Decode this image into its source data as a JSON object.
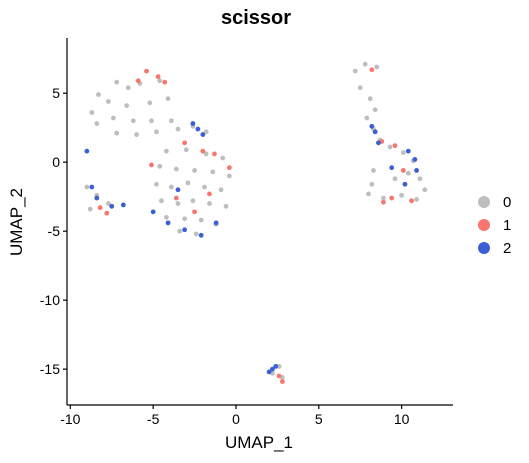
{
  "chart_data": {
    "type": "scatter",
    "title": "scissor",
    "xlabel": "UMAP_1",
    "ylabel": "UMAP_2",
    "xlim": [
      -10.2,
      13.1
    ],
    "ylim": [
      -17.6,
      9.0
    ],
    "x_ticks": [
      -10,
      -5,
      0,
      5,
      10
    ],
    "y_ticks": [
      -15,
      -10,
      -5,
      0,
      5
    ],
    "grid": false,
    "legend_position": "right",
    "legend": [
      {
        "label": "0",
        "color": "#BEBEBE"
      },
      {
        "label": "1",
        "color": "#F8766D"
      },
      {
        "label": "2",
        "color": "#3B5FD4"
      }
    ],
    "series": [
      {
        "name": "0",
        "color": "#BEBEBE",
        "points": [
          [
            -7.2,
            5.8
          ],
          [
            -6.5,
            5.4
          ],
          [
            -5.8,
            5.7
          ],
          [
            -4.6,
            5.9
          ],
          [
            -8.3,
            4.9
          ],
          [
            -7.7,
            4.4
          ],
          [
            -6.6,
            4.1
          ],
          [
            -5.2,
            4.3
          ],
          [
            -4.1,
            4.6
          ],
          [
            -8.7,
            3.6
          ],
          [
            -7.4,
            3.2
          ],
          [
            -6.2,
            3.0
          ],
          [
            -5.1,
            3.0
          ],
          [
            -3.9,
            3.0
          ],
          [
            -8.4,
            2.8
          ],
          [
            -7.2,
            2.1
          ],
          [
            -6.0,
            2.0
          ],
          [
            -4.8,
            2.2
          ],
          [
            -3.5,
            2.4
          ],
          [
            -2.6,
            2.6
          ],
          [
            -1.8,
            2.2
          ],
          [
            -9.0,
            -1.8
          ],
          [
            -8.4,
            -2.4
          ],
          [
            -7.7,
            -3.0
          ],
          [
            -8.8,
            -3.4
          ],
          [
            -4.2,
            0.8
          ],
          [
            -3.0,
            0.9
          ],
          [
            -1.8,
            0.6
          ],
          [
            -0.8,
            0.3
          ],
          [
            -4.6,
            -0.3
          ],
          [
            -3.6,
            -0.5
          ],
          [
            -2.5,
            -0.6
          ],
          [
            -1.4,
            -0.7
          ],
          [
            -0.4,
            -1.0
          ],
          [
            -4.8,
            -1.6
          ],
          [
            -3.9,
            -1.8
          ],
          [
            -2.9,
            -1.5
          ],
          [
            -1.9,
            -1.8
          ],
          [
            -0.9,
            -2.0
          ],
          [
            -4.5,
            -2.8
          ],
          [
            -3.5,
            -3.0
          ],
          [
            -2.6,
            -2.8
          ],
          [
            -1.6,
            -3.0
          ],
          [
            -0.6,
            -3.2
          ],
          [
            -4.2,
            -4.0
          ],
          [
            -3.1,
            -4.1
          ],
          [
            -2.1,
            -4.2
          ],
          [
            -1.2,
            -4.5
          ],
          [
            -3.4,
            -5.0
          ],
          [
            -2.4,
            -5.2
          ],
          [
            7.2,
            6.6
          ],
          [
            7.8,
            7.1
          ],
          [
            8.5,
            6.9
          ],
          [
            7.5,
            5.4
          ],
          [
            8.1,
            4.6
          ],
          [
            8.4,
            3.8
          ],
          [
            7.9,
            3.2
          ],
          [
            8.3,
            2.4
          ],
          [
            8.7,
            1.6
          ],
          [
            9.3,
            1.1
          ],
          [
            10.1,
            0.7
          ],
          [
            10.7,
            0.1
          ],
          [
            10.4,
            -0.8
          ],
          [
            9.6,
            -1.2
          ],
          [
            8.3,
            -0.6
          ],
          [
            8.2,
            -1.6
          ],
          [
            8.0,
            -2.3
          ],
          [
            8.9,
            -2.6
          ],
          [
            10.0,
            -2.4
          ],
          [
            10.9,
            -2.7
          ],
          [
            11.4,
            -2.0
          ],
          [
            11.1,
            -1.2
          ],
          [
            2.2,
            -15.3
          ],
          [
            2.6,
            -14.8
          ],
          [
            2.8,
            -15.6
          ]
        ]
      },
      {
        "name": "1",
        "color": "#F8766D",
        "points": [
          [
            -5.4,
            6.6
          ],
          [
            -4.7,
            6.2
          ],
          [
            -4.3,
            5.8
          ],
          [
            -5.9,
            5.9
          ],
          [
            -3.1,
            1.4
          ],
          [
            -2.0,
            0.8
          ],
          [
            -1.3,
            0.6
          ],
          [
            -0.4,
            -0.4
          ],
          [
            -1.6,
            -2.3
          ],
          [
            -3.6,
            -2.6
          ],
          [
            -2.5,
            -3.6
          ],
          [
            -5.1,
            -0.2
          ],
          [
            -8.2,
            -3.3
          ],
          [
            -7.8,
            -3.7
          ],
          [
            8.2,
            6.7
          ],
          [
            8.8,
            1.5
          ],
          [
            9.6,
            1.2
          ],
          [
            10.1,
            -0.6
          ],
          [
            9.4,
            -2.6
          ],
          [
            10.6,
            -2.8
          ],
          [
            8.9,
            -2.9
          ],
          [
            2.6,
            -15.5
          ],
          [
            2.8,
            -15.9
          ]
        ]
      },
      {
        "name": "2",
        "color": "#3B5FD4",
        "points": [
          [
            -2.6,
            2.8
          ],
          [
            -2.3,
            2.4
          ],
          [
            -2.0,
            2.0
          ],
          [
            -9.0,
            0.8
          ],
          [
            -8.7,
            -1.8
          ],
          [
            -8.4,
            -2.6
          ],
          [
            -7.5,
            -3.2
          ],
          [
            -6.8,
            -3.1
          ],
          [
            -5.0,
            -3.6
          ],
          [
            -4.1,
            -4.4
          ],
          [
            -3.1,
            -4.9
          ],
          [
            -2.1,
            -5.3
          ],
          [
            -1.2,
            -4.4
          ],
          [
            -3.5,
            -2.0
          ],
          [
            8.2,
            2.6
          ],
          [
            8.4,
            2.2
          ],
          [
            8.6,
            1.4
          ],
          [
            10.4,
            0.8
          ],
          [
            10.8,
            0.2
          ],
          [
            10.9,
            -0.6
          ],
          [
            10.2,
            -1.6
          ],
          [
            9.4,
            -0.4
          ],
          [
            2.2,
            -15.0
          ],
          [
            2.0,
            -15.2
          ],
          [
            2.4,
            -14.8
          ]
        ]
      }
    ]
  }
}
